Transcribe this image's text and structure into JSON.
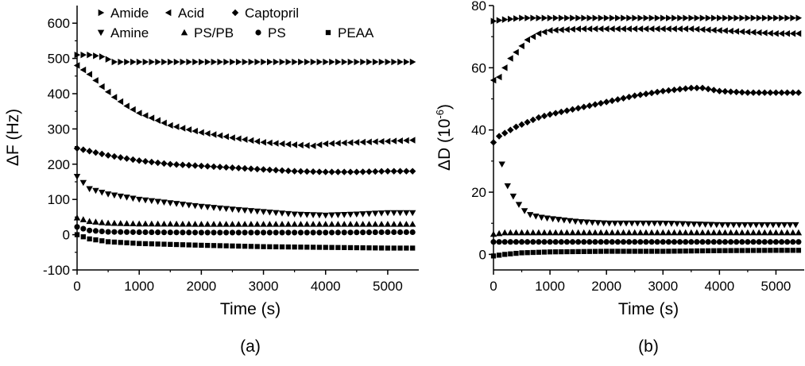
{
  "chart_data": [
    {
      "type": "scatter",
      "panel_label": "(a)",
      "xlabel": "Time (s)",
      "ylabel": "ΔF (Hz)",
      "xlim": [
        0,
        5500
      ],
      "ylim": [
        -100,
        650
      ],
      "xticks": [
        0,
        1000,
        2000,
        3000,
        4000,
        5000
      ],
      "yticks": [
        -100,
        0,
        100,
        200,
        300,
        400,
        500,
        600
      ],
      "xtick_labels": [
        "0",
        "1000",
        "2000",
        "3000",
        "4000",
        "5000"
      ],
      "ytick_labels": [
        "-100",
        "0",
        "100",
        "200",
        "300",
        "400",
        "500",
        "600"
      ],
      "legend": {
        "placement": "top",
        "rows": [
          [
            {
              "name": "Amide",
              "marker": "triangle-right"
            },
            {
              "name": "Acid",
              "marker": "triangle-left"
            },
            {
              "name": "Captopril",
              "marker": "diamond"
            }
          ],
          [
            {
              "name": "Amine",
              "marker": "triangle-down"
            },
            {
              "name": "PS/PB",
              "marker": "triangle-up"
            },
            {
              "name": "PS",
              "marker": "circle"
            },
            {
              "name": "PEAA",
              "marker": "square"
            }
          ]
        ]
      },
      "series": [
        {
          "name": "Amide",
          "marker": "triangle-right",
          "x": [
            0,
            200,
            400,
            600,
            1000,
            1500,
            2000,
            2500,
            3000,
            3500,
            4000,
            4500,
            5000,
            5400
          ],
          "y": [
            510,
            510,
            505,
            490,
            490,
            490,
            490,
            490,
            490,
            490,
            490,
            490,
            490,
            490
          ]
        },
        {
          "name": "Acid",
          "marker": "triangle-left",
          "x": [
            0,
            200,
            400,
            600,
            800,
            1000,
            1500,
            2000,
            2500,
            3000,
            3500,
            3800,
            4000,
            4500,
            5000,
            5400
          ],
          "y": [
            480,
            455,
            420,
            390,
            365,
            345,
            310,
            290,
            275,
            262,
            255,
            252,
            258,
            262,
            265,
            268
          ]
        },
        {
          "name": "Captopril",
          "marker": "diamond",
          "x": [
            0,
            500,
            1000,
            1500,
            2000,
            2500,
            3000,
            3500,
            4000,
            4500,
            5000,
            5400
          ],
          "y": [
            245,
            225,
            210,
            200,
            195,
            190,
            185,
            180,
            178,
            178,
            180,
            180
          ]
        },
        {
          "name": "Amine",
          "marker": "triangle-down",
          "x": [
            0,
            200,
            500,
            1000,
            1500,
            2000,
            2500,
            3000,
            3500,
            4000,
            4500,
            5000,
            5400
          ],
          "y": [
            165,
            130,
            115,
            100,
            90,
            80,
            72,
            65,
            58,
            55,
            58,
            62,
            62
          ]
        },
        {
          "name": "PS/PB",
          "marker": "triangle-up",
          "x": [
            0,
            200,
            500,
            1000,
            2000,
            3000,
            4000,
            5000,
            5400
          ],
          "y": [
            48,
            38,
            33,
            31,
            30,
            30,
            30,
            30,
            30
          ]
        },
        {
          "name": "PS",
          "marker": "circle",
          "x": [
            0,
            200,
            500,
            1000,
            2000,
            3000,
            4000,
            5000,
            5400
          ],
          "y": [
            22,
            12,
            8,
            7,
            6,
            6,
            6,
            7,
            7
          ]
        },
        {
          "name": "PEAA",
          "marker": "square",
          "x": [
            0,
            200,
            500,
            1000,
            2000,
            3000,
            4000,
            5000,
            5400
          ],
          "y": [
            0,
            -12,
            -20,
            -25,
            -30,
            -34,
            -36,
            -38,
            -38
          ]
        }
      ]
    },
    {
      "type": "scatter",
      "panel_label": "(b)",
      "xlabel": "Time (s)",
      "ylabel": "ΔD (10",
      "ylabel_superscript": "-6",
      "ylabel_suffix": ")",
      "xlim": [
        0,
        5500
      ],
      "ylim": [
        -5,
        80
      ],
      "xticks": [
        0,
        1000,
        2000,
        3000,
        4000,
        5000
      ],
      "yticks": [
        0,
        20,
        40,
        60,
        80
      ],
      "xtick_labels": [
        "0",
        "1000",
        "2000",
        "3000",
        "4000",
        "5000"
      ],
      "ytick_labels": [
        "0",
        "20",
        "40",
        "60",
        "80"
      ],
      "series": [
        {
          "name": "Amide",
          "marker": "triangle-right",
          "x": [
            0,
            200,
            500,
            1000,
            2000,
            3000,
            4000,
            5000,
            5400
          ],
          "y": [
            75,
            75.5,
            76,
            76,
            76,
            76,
            76,
            76,
            76
          ]
        },
        {
          "name": "Acid",
          "marker": "triangle-left",
          "x": [
            0,
            100,
            200,
            300,
            400,
            500,
            600,
            700,
            800,
            1000,
            1500,
            2000,
            2500,
            3000,
            3500,
            4000,
            4500,
            5000,
            5400
          ],
          "y": [
            56,
            57,
            60,
            63,
            65,
            67,
            69,
            70,
            71,
            72,
            72.5,
            72.5,
            72.5,
            72.5,
            72.5,
            72,
            71.5,
            71,
            71
          ]
        },
        {
          "name": "Captopril",
          "marker": "diamond",
          "x": [
            0,
            100,
            200,
            400,
            600,
            800,
            1000,
            1500,
            2000,
            2500,
            3000,
            3500,
            3700,
            4000,
            4500,
            5000,
            5400
          ],
          "y": [
            36,
            38,
            39,
            41,
            42.5,
            44,
            45,
            47,
            49,
            51,
            52.5,
            53.5,
            53.5,
            52.5,
            52,
            52,
            52
          ]
        },
        {
          "name": "Amine",
          "marker": "triangle-down",
          "x": [
            150,
            250,
            400,
            500,
            600,
            800,
            1000,
            1500,
            2000,
            3000,
            4000,
            5000,
            5400
          ],
          "y": [
            29,
            22,
            17,
            15,
            13,
            12,
            11.5,
            10.5,
            10,
            10,
            9.5,
            9.5,
            9.5
          ]
        },
        {
          "name": "PS/PB",
          "marker": "triangle-up",
          "x": [
            0,
            200,
            500,
            1000,
            2000,
            3000,
            4000,
            5000,
            5400
          ],
          "y": [
            6.5,
            7,
            7,
            7,
            7,
            7,
            7,
            7,
            7
          ]
        },
        {
          "name": "PS",
          "marker": "circle",
          "x": [
            0,
            200,
            500,
            1000,
            2000,
            3000,
            4000,
            5000,
            5400
          ],
          "y": [
            4,
            4,
            4,
            4,
            4,
            4,
            4,
            4,
            4
          ]
        },
        {
          "name": "PEAA",
          "marker": "square",
          "x": [
            0,
            200,
            500,
            1000,
            2000,
            3000,
            4000,
            5000,
            5400
          ],
          "y": [
            -0.5,
            0,
            0.5,
            0.8,
            1,
            1,
            1.2,
            1.3,
            1.3
          ]
        }
      ]
    }
  ]
}
